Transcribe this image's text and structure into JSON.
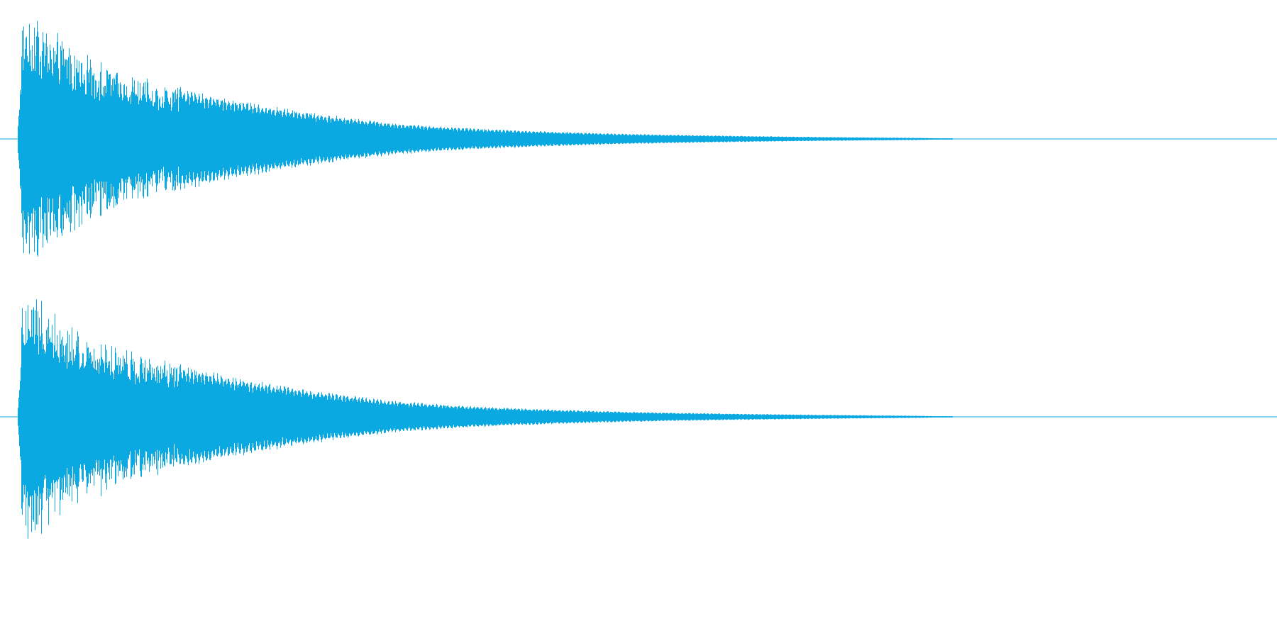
{
  "waveform": {
    "color": "#0aa9e2",
    "background": "#ffffff",
    "channels": [
      {
        "name": "channel-1",
        "envelope": [
          [
            0.0,
            0.0
          ],
          [
            0.005,
            0.95
          ],
          [
            0.01,
            1.0
          ],
          [
            0.02,
            0.92
          ],
          [
            0.03,
            0.84
          ],
          [
            0.05,
            0.72
          ],
          [
            0.07,
            0.62
          ],
          [
            0.1,
            0.52
          ],
          [
            0.13,
            0.44
          ],
          [
            0.16,
            0.37
          ],
          [
            0.2,
            0.3
          ],
          [
            0.25,
            0.23
          ],
          [
            0.3,
            0.17
          ],
          [
            0.35,
            0.12
          ],
          [
            0.4,
            0.09
          ],
          [
            0.45,
            0.07
          ],
          [
            0.5,
            0.055
          ],
          [
            0.55,
            0.042
          ],
          [
            0.6,
            0.033
          ],
          [
            0.65,
            0.026
          ],
          [
            0.7,
            0.02
          ],
          [
            0.75,
            0.015
          ],
          [
            0.8,
            0.011
          ],
          [
            0.84,
            0.008
          ],
          [
            0.86,
            0.004
          ],
          [
            0.87,
            0.0
          ],
          [
            1.0,
            0.0
          ]
        ]
      },
      {
        "name": "channel-2",
        "envelope": [
          [
            0.0,
            0.0
          ],
          [
            0.005,
            0.95
          ],
          [
            0.01,
            1.0
          ],
          [
            0.02,
            0.92
          ],
          [
            0.03,
            0.84
          ],
          [
            0.05,
            0.72
          ],
          [
            0.07,
            0.62
          ],
          [
            0.1,
            0.52
          ],
          [
            0.13,
            0.44
          ],
          [
            0.16,
            0.37
          ],
          [
            0.2,
            0.3
          ],
          [
            0.25,
            0.23
          ],
          [
            0.3,
            0.17
          ],
          [
            0.35,
            0.12
          ],
          [
            0.4,
            0.09
          ],
          [
            0.45,
            0.07
          ],
          [
            0.5,
            0.055
          ],
          [
            0.55,
            0.042
          ],
          [
            0.6,
            0.033
          ],
          [
            0.65,
            0.026
          ],
          [
            0.7,
            0.02
          ],
          [
            0.75,
            0.015
          ],
          [
            0.8,
            0.011
          ],
          [
            0.84,
            0.008
          ],
          [
            0.86,
            0.004
          ],
          [
            0.87,
            0.0
          ],
          [
            1.0,
            0.0
          ]
        ]
      }
    ]
  }
}
